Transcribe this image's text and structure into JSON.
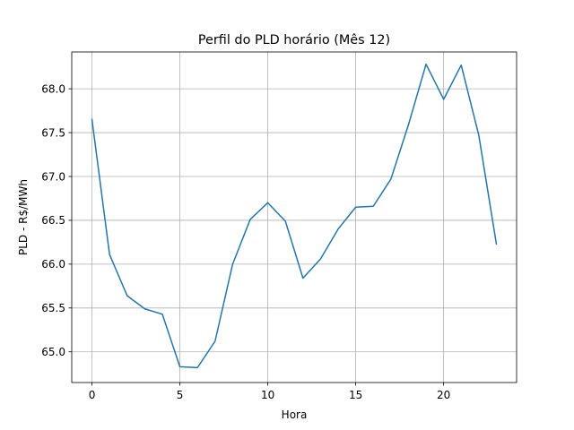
{
  "chart_data": {
    "type": "line",
    "title": "Perfil do PLD horário (Mês 12)",
    "xlabel": "Hora",
    "ylabel": "PLD - R$/MWh",
    "xlim": [
      -1.15,
      24.15
    ],
    "ylim": [
      64.65,
      68.42
    ],
    "xticks": [
      0,
      5,
      10,
      15,
      20
    ],
    "xtick_labels": [
      "0",
      "5",
      "10",
      "15",
      "20"
    ],
    "yticks": [
      65.0,
      65.5,
      66.0,
      66.5,
      67.0,
      67.5,
      68.0
    ],
    "ytick_labels": [
      "65.0",
      "65.5",
      "66.0",
      "66.5",
      "67.0",
      "67.5",
      "68.0"
    ],
    "grid": true,
    "line_color": "#1f77b4",
    "series": [
      {
        "x": [
          0,
          1,
          2,
          3,
          4,
          5,
          6,
          7,
          8,
          9,
          10,
          11,
          12,
          13,
          14,
          15,
          16,
          17,
          18,
          19,
          20,
          21,
          22,
          23
        ],
        "values": [
          67.65,
          66.11,
          65.64,
          65.49,
          65.43,
          64.83,
          64.82,
          65.12,
          66.0,
          66.51,
          66.7,
          66.49,
          65.84,
          66.06,
          66.4,
          66.65,
          66.66,
          66.97,
          67.59,
          68.28,
          67.88,
          68.27,
          67.47,
          66.23
        ]
      }
    ]
  }
}
